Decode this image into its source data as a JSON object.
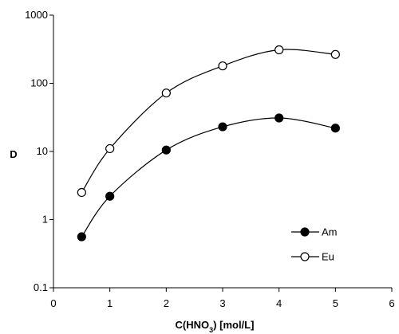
{
  "chart_data": {
    "type": "line",
    "title": "",
    "xlabel": "C(HNO3) [mol/L]",
    "xlabel_main": "C(HNO",
    "xlabel_sub": "3",
    "xlabel_tail": ") [mol/L]",
    "ylabel": "D",
    "xlim": [
      0,
      6
    ],
    "ylim": [
      0.1,
      1000
    ],
    "yscale": "log",
    "grid": false,
    "legend_position": "bottom-right",
    "x_ticks": [
      "0",
      "1",
      "2",
      "3",
      "4",
      "5",
      "6"
    ],
    "y_ticks": [
      "0.1",
      "1",
      "10",
      "100",
      "1000"
    ],
    "series": [
      {
        "name": "Am",
        "marker": "filled-circle",
        "color": "#000000",
        "x": [
          0.5,
          1,
          2,
          3,
          4,
          5
        ],
        "y": [
          0.56,
          2.2,
          10.5,
          23,
          31,
          22
        ]
      },
      {
        "name": "Eu",
        "marker": "open-circle",
        "color": "#000000",
        "x": [
          0.5,
          1,
          2,
          3,
          4,
          5
        ],
        "y": [
          2.5,
          11,
          72,
          180,
          310,
          265
        ]
      }
    ]
  }
}
